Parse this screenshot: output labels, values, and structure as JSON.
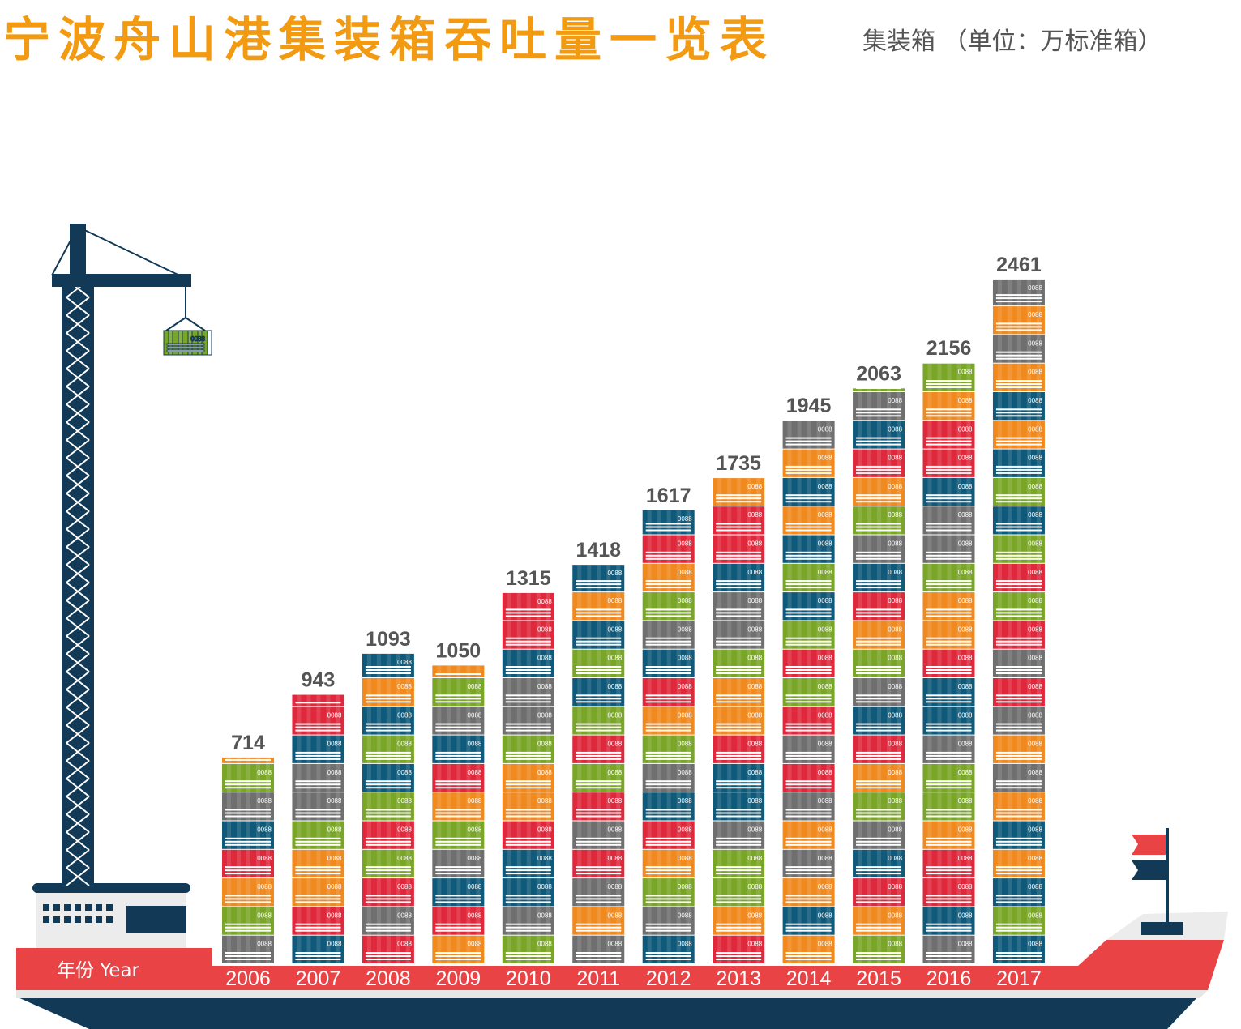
{
  "chart_data": {
    "type": "bar",
    "title": "宁波舟山港集装箱吞吐量一览表",
    "unit_label": "集装箱 （单位：万标准箱）",
    "xlabel": "年份 Year",
    "ylabel": "",
    "categories": [
      "2006",
      "2007",
      "2008",
      "2009",
      "2010",
      "2011",
      "2012",
      "2013",
      "2014",
      "2015",
      "2016",
      "2017"
    ],
    "values": [
      714,
      943,
      1093,
      1050,
      1315,
      1418,
      1617,
      1735,
      1945,
      2063,
      2156,
      2461
    ],
    "container_code": "0088",
    "colors": {
      "title": "#f29b12",
      "red": "#e0283c",
      "blue": "#0f5a7a",
      "gray": "#6f6f6f",
      "green": "#7aa628",
      "orange": "#f0891e",
      "navy": "#123a57",
      "hull": "#e94346"
    }
  }
}
